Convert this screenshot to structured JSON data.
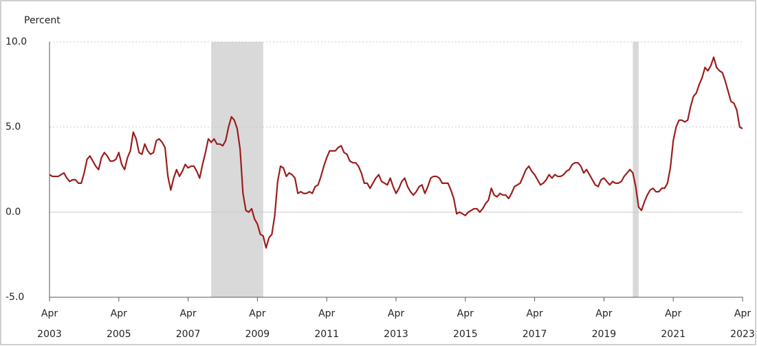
{
  "chart_data": {
    "type": "line",
    "y_label": "Percent",
    "color": "#9b1c1c",
    "ylim": [
      -5,
      10
    ],
    "yticks": [
      {
        "value": -5,
        "label": "-5.0"
      },
      {
        "value": 0,
        "label": "0.0"
      },
      {
        "value": 5,
        "label": "5.0"
      },
      {
        "value": 10,
        "label": "10.0"
      }
    ],
    "shaded_ranges": [
      [
        56,
        74
      ],
      [
        202,
        204
      ]
    ],
    "shade_color": "#d9d9d9",
    "categories": [
      "Apr 2003",
      null,
      null,
      null,
      null,
      null,
      null,
      null,
      null,
      null,
      null,
      null,
      null,
      null,
      null,
      null,
      null,
      null,
      null,
      null,
      null,
      null,
      null,
      null,
      "Apr 2005",
      null,
      null,
      null,
      null,
      null,
      null,
      null,
      null,
      null,
      null,
      null,
      null,
      null,
      null,
      null,
      null,
      null,
      null,
      null,
      null,
      null,
      null,
      null,
      "Apr 2007",
      null,
      null,
      null,
      null,
      null,
      null,
      null,
      null,
      null,
      null,
      null,
      null,
      null,
      null,
      null,
      null,
      null,
      null,
      null,
      null,
      null,
      null,
      null,
      "Apr 2009",
      null,
      null,
      null,
      null,
      null,
      null,
      null,
      null,
      null,
      null,
      null,
      null,
      null,
      null,
      null,
      null,
      null,
      null,
      null,
      null,
      null,
      null,
      null,
      "Apr 2011",
      null,
      null,
      null,
      null,
      null,
      null,
      null,
      null,
      null,
      null,
      null,
      null,
      null,
      null,
      null,
      null,
      null,
      null,
      null,
      null,
      null,
      null,
      null,
      "Apr 2013",
      null,
      null,
      null,
      null,
      null,
      null,
      null,
      null,
      null,
      null,
      null,
      null,
      null,
      null,
      null,
      null,
      null,
      null,
      null,
      null,
      null,
      null,
      null,
      "Apr 2015",
      null,
      null,
      null,
      null,
      null,
      null,
      null,
      null,
      null,
      null,
      null,
      null,
      null,
      null,
      null,
      null,
      null,
      null,
      null,
      null,
      null,
      null,
      null,
      "Apr 2017",
      null,
      null,
      null,
      null,
      null,
      null,
      null,
      null,
      null,
      null,
      null,
      null,
      null,
      null,
      null,
      null,
      null,
      null,
      null,
      null,
      null,
      null,
      null,
      "Apr 2019",
      null,
      null,
      null,
      null,
      null,
      null,
      null,
      null,
      null,
      null,
      null,
      null,
      null,
      null,
      null,
      null,
      null,
      null,
      null,
      null,
      null,
      null,
      null,
      "Apr 2021",
      null,
      null,
      null,
      null,
      null,
      null,
      null,
      null,
      null,
      null,
      null,
      null,
      null,
      null,
      null,
      null,
      null,
      null,
      null,
      null,
      null,
      null,
      null,
      "Apr 2023"
    ],
    "values": [
      2.2,
      2.1,
      2.1,
      2.1,
      2.2,
      2.3,
      2.0,
      1.8,
      1.9,
      1.9,
      1.7,
      1.7,
      2.3,
      3.1,
      3.3,
      3.0,
      2.7,
      2.5,
      3.2,
      3.5,
      3.3,
      3.0,
      3.0,
      3.1,
      3.5,
      2.8,
      2.5,
      3.2,
      3.6,
      4.7,
      4.3,
      3.5,
      3.4,
      4.0,
      3.6,
      3.4,
      3.5,
      4.2,
      4.3,
      4.1,
      3.8,
      2.1,
      1.3,
      2.0,
      2.5,
      2.1,
      2.4,
      2.8,
      2.6,
      2.7,
      2.7,
      2.4,
      2.0,
      2.8,
      3.5,
      4.3,
      4.1,
      4.3,
      4.0,
      4.0,
      3.9,
      4.2,
      5.0,
      5.6,
      5.4,
      4.9,
      3.7,
      1.1,
      0.1,
      0.0,
      0.2,
      -0.4,
      -0.7,
      -1.3,
      -1.4,
      -2.1,
      -1.5,
      -1.3,
      -0.2,
      1.8,
      2.7,
      2.6,
      2.1,
      2.3,
      2.2,
      2.0,
      1.1,
      1.2,
      1.1,
      1.1,
      1.2,
      1.1,
      1.5,
      1.6,
      2.1,
      2.7,
      3.2,
      3.6,
      3.6,
      3.6,
      3.8,
      3.9,
      3.5,
      3.4,
      3.0,
      2.9,
      2.9,
      2.7,
      2.3,
      1.7,
      1.7,
      1.4,
      1.7,
      2.0,
      2.2,
      1.8,
      1.7,
      1.6,
      2.0,
      1.5,
      1.1,
      1.4,
      1.8,
      2.0,
      1.5,
      1.2,
      1.0,
      1.2,
      1.5,
      1.6,
      1.1,
      1.5,
      2.0,
      2.1,
      2.1,
      2.0,
      1.7,
      1.7,
      1.7,
      1.3,
      0.8,
      -0.1,
      0.0,
      -0.1,
      -0.2,
      0.0,
      0.1,
      0.2,
      0.2,
      0.0,
      0.2,
      0.5,
      0.7,
      1.4,
      1.0,
      0.9,
      1.1,
      1.0,
      1.0,
      0.8,
      1.1,
      1.5,
      1.6,
      1.7,
      2.1,
      2.5,
      2.7,
      2.4,
      2.2,
      1.9,
      1.6,
      1.7,
      1.9,
      2.2,
      2.0,
      2.2,
      2.1,
      2.1,
      2.2,
      2.4,
      2.5,
      2.8,
      2.9,
      2.9,
      2.7,
      2.3,
      2.5,
      2.2,
      1.9,
      1.6,
      1.5,
      1.9,
      2.0,
      1.8,
      1.6,
      1.8,
      1.7,
      1.7,
      1.8,
      2.1,
      2.3,
      2.5,
      2.3,
      1.5,
      0.3,
      0.1,
      0.6,
      1.0,
      1.3,
      1.4,
      1.2,
      1.2,
      1.4,
      1.4,
      1.7,
      2.6,
      4.2,
      5.0,
      5.4,
      5.4,
      5.3,
      5.4,
      6.2,
      6.8,
      7.0,
      7.5,
      7.9,
      8.5,
      8.3,
      8.6,
      9.1,
      8.5,
      8.3,
      8.2,
      7.7,
      7.1,
      6.5,
      6.4,
      6.0,
      5.0,
      4.9
    ]
  }
}
